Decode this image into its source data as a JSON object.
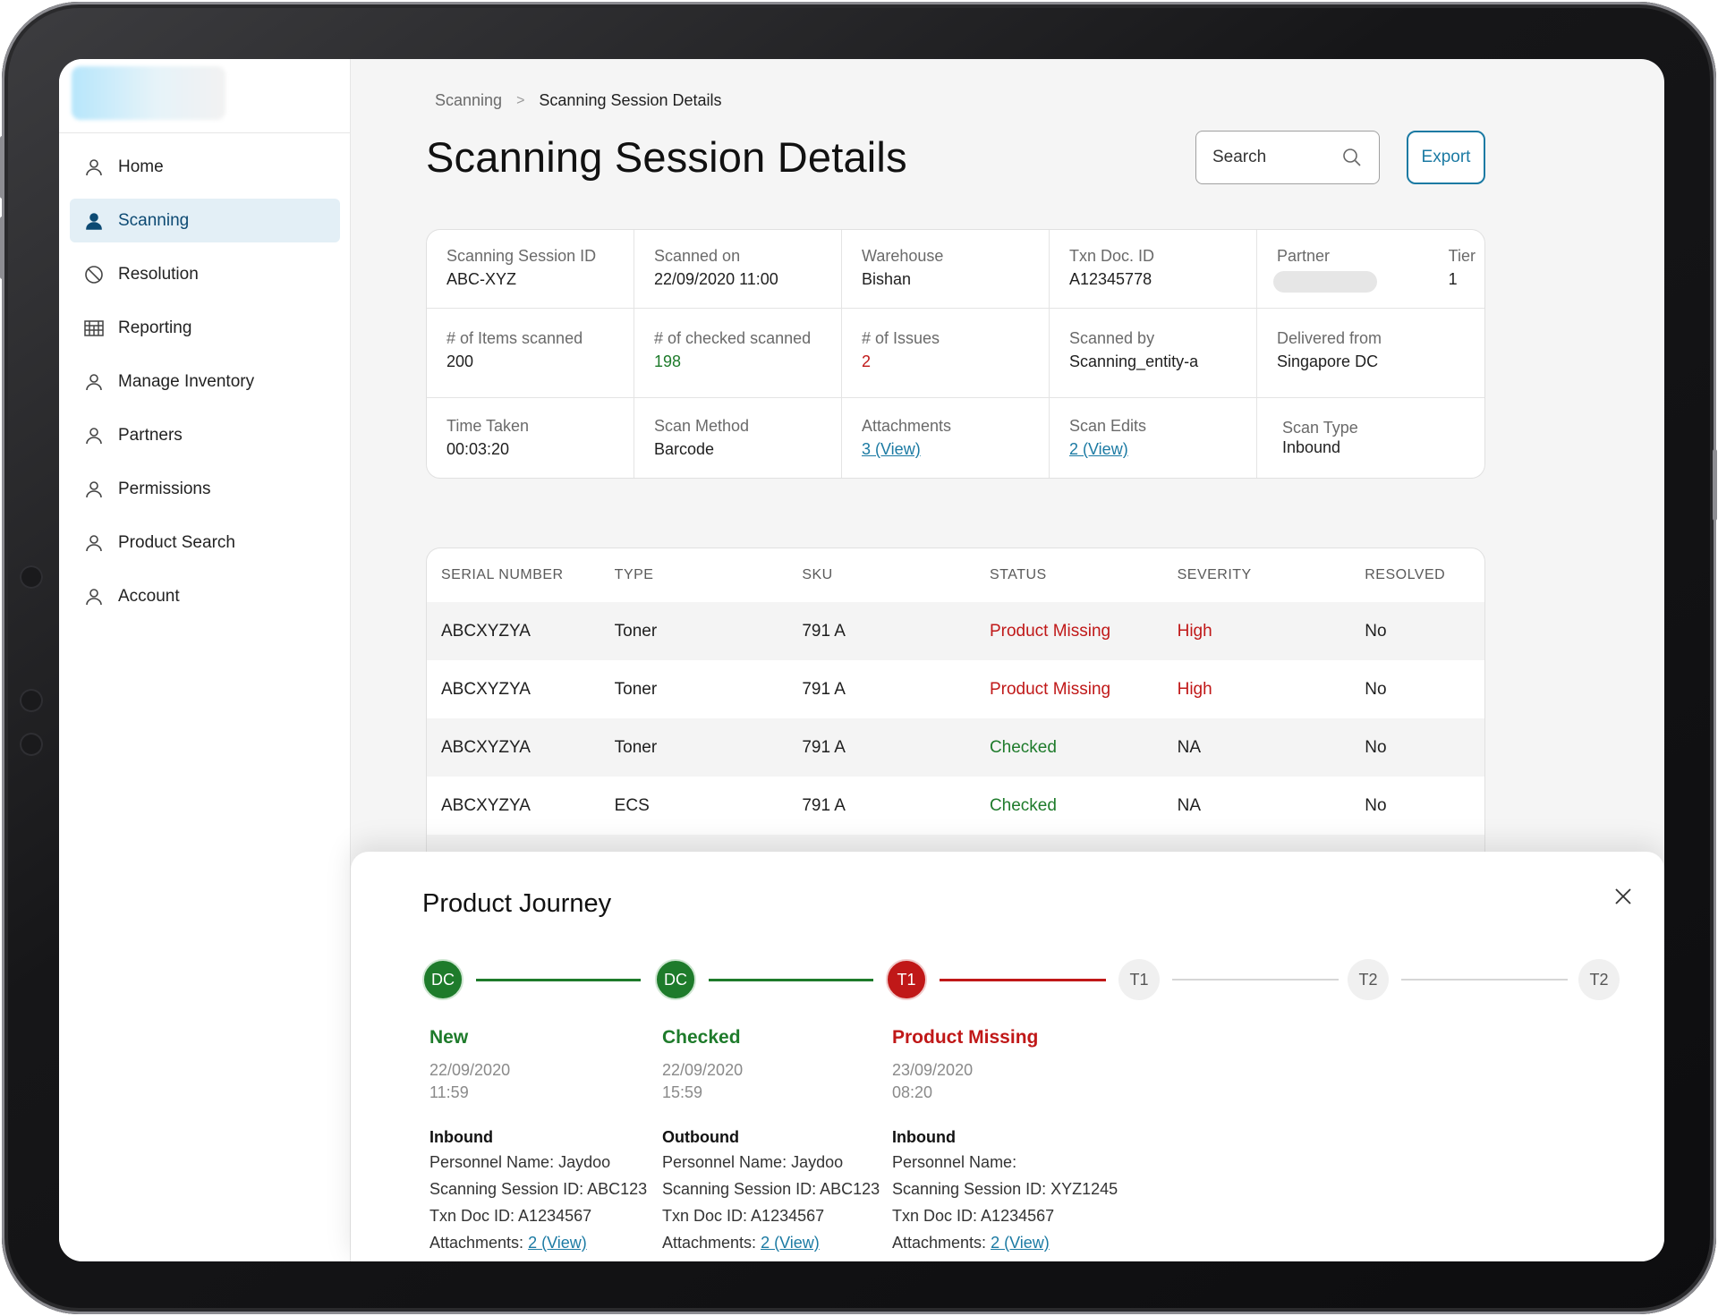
{
  "sidebar": {
    "items": [
      {
        "label": "Home",
        "icon": "user-icon"
      },
      {
        "label": "Scanning",
        "icon": "user-icon"
      },
      {
        "label": "Resolution",
        "icon": "block-icon"
      },
      {
        "label": "Reporting",
        "icon": "grid-icon"
      },
      {
        "label": "Manage Inventory",
        "icon": "user-icon"
      },
      {
        "label": "Partners",
        "icon": "user-icon"
      },
      {
        "label": "Permissions",
        "icon": "user-icon"
      },
      {
        "label": "Product Search",
        "icon": "user-icon"
      },
      {
        "label": "Account",
        "icon": "user-icon"
      }
    ],
    "active": "Scanning"
  },
  "breadcrumb": {
    "parent": "Scanning",
    "separator": ">",
    "current": "Scanning Session Details"
  },
  "page_title": "Scanning Session Details",
  "search": {
    "placeholder": "Search"
  },
  "export_label": "Export",
  "session": {
    "rows": [
      [
        {
          "label": "Scanning Session ID",
          "value": "ABC-XYZ"
        },
        {
          "label": "Scanned on",
          "value": "22/09/2020 11:00"
        },
        {
          "label": "Warehouse",
          "value": "Bishan"
        },
        {
          "label": "Txn Doc. ID",
          "value": "A12345778"
        },
        {
          "label": "Partner",
          "value": "",
          "tier_label": "Tier",
          "tier_value": "1"
        }
      ],
      [
        {
          "label": "# of Items scanned",
          "value": "200"
        },
        {
          "label": "# of checked scanned",
          "value": "198"
        },
        {
          "label": "# of Issues",
          "value": "2"
        },
        {
          "label": "Scanned by",
          "value": "Scanning_entity-a"
        },
        {
          "label": "Delivered from",
          "value": "Singapore DC"
        }
      ],
      [
        {
          "label": "Time Taken",
          "value": "00:03:20"
        },
        {
          "label": "Scan Method",
          "value": "Barcode"
        },
        {
          "label": "Attachments",
          "value": "3 (View)"
        },
        {
          "label": "Scan Edits",
          "value": "2 (View)"
        },
        {
          "label": "Scan Type",
          "value": "Inbound"
        }
      ]
    ]
  },
  "table": {
    "columns": [
      "SERIAL NUMBER",
      "TYPE",
      "SKU",
      "STATUS",
      "SEVERITY",
      "RESOLVED"
    ],
    "rows": [
      {
        "serial": "ABCXYZYA",
        "type": "Toner",
        "sku": "791 A",
        "status": "Product Missing",
        "severity": "High",
        "resolved": "No"
      },
      {
        "serial": "ABCXYZYA",
        "type": "Toner",
        "sku": "791 A",
        "status": "Product Missing",
        "severity": "High",
        "resolved": "No"
      },
      {
        "serial": "ABCXYZYA",
        "type": "Toner",
        "sku": "791 A",
        "status": "Checked",
        "severity": "NA",
        "resolved": "No"
      },
      {
        "serial": "ABCXYZYA",
        "type": "ECS",
        "sku": "791 A",
        "status": "Checked",
        "severity": "NA",
        "resolved": "No"
      }
    ]
  },
  "journey": {
    "title": "Product Journey",
    "nodes": [
      "DC",
      "DC",
      "T1",
      "T1",
      "T2",
      "T2"
    ],
    "steps": [
      {
        "status": "New",
        "date": "22/09/2020",
        "time": "11:59",
        "direction": "Inbound",
        "personnel_label": "Personnel Name:",
        "personnel": "Jaydoo",
        "session_label": "Scanning Session ID:",
        "session": "ABC123",
        "txn_label": "Txn Doc ID:",
        "txn": "A1234567",
        "attach_label": "Attachments:",
        "attach": "2 (View)"
      },
      {
        "status": "Checked",
        "date": "22/09/2020",
        "time": "15:59",
        "direction": "Outbound",
        "personnel_label": "Personnel Name:",
        "personnel": "Jaydoo",
        "session_label": "Scanning Session ID:",
        "session": "ABC123",
        "txn_label": "Txn Doc ID:",
        "txn": "A1234567",
        "attach_label": "Attachments:",
        "attach": "2 (View)"
      },
      {
        "status": "Product Missing",
        "date": "23/09/2020",
        "time": "08:20",
        "direction": "Inbound",
        "personnel_label": "Personnel Name:",
        "personnel": "",
        "session_label": "Scanning Session ID:",
        "session": "XYZ1245",
        "txn_label": "Txn Doc ID:",
        "txn": "A1234567",
        "attach_label": "Attachments:",
        "attach": "2 (View)"
      }
    ]
  },
  "colors": {
    "accent": "#1b7aa3",
    "green": "#1e7b2b",
    "red": "#c01818",
    "active_nav_bg": "#e3eff6"
  }
}
